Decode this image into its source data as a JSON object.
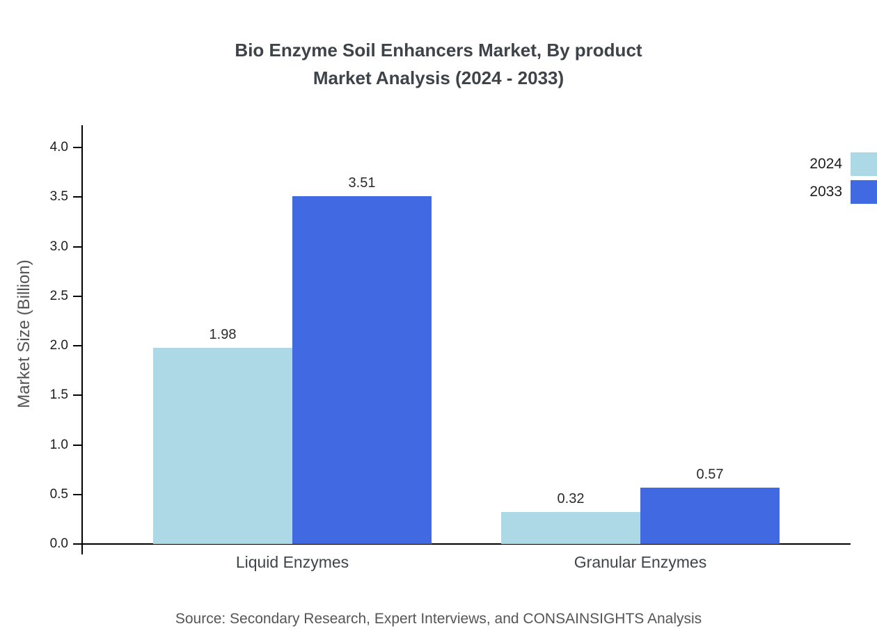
{
  "title": {
    "line1": "Bio Enzyme Soil Enhancers Market, By product",
    "line2": "Market Analysis (2024 - 2033)"
  },
  "ylabel": "Market Size (Billion)",
  "source": "Source: Secondary Research, Expert Interviews, and CONSAINSIGHTS Analysis",
  "legend": [
    {
      "label": "2024",
      "color": "#ADD8E6"
    },
    {
      "label": "2033",
      "color": "#4169E1"
    }
  ],
  "chart_data": {
    "type": "bar",
    "title": "Bio Enzyme Soil Enhancers Market, By product Market Analysis (2024 - 2033)",
    "categories": [
      "Liquid Enzymes",
      "Granular Enzymes"
    ],
    "series": [
      {
        "name": "2024",
        "color": "#ADD8E6",
        "values": [
          1.98,
          0.32
        ]
      },
      {
        "name": "2033",
        "color": "#4169E1",
        "values": [
          3.51,
          0.57
        ]
      }
    ],
    "xlabel": "",
    "ylabel": "Market Size (Billion)",
    "ylim": [
      0,
      4.2
    ],
    "yticks": [
      0.0,
      0.5,
      1.0,
      1.5,
      2.0,
      2.5,
      3.0,
      3.5,
      4.0
    ],
    "grid": false,
    "legend_position": "upper right"
  }
}
